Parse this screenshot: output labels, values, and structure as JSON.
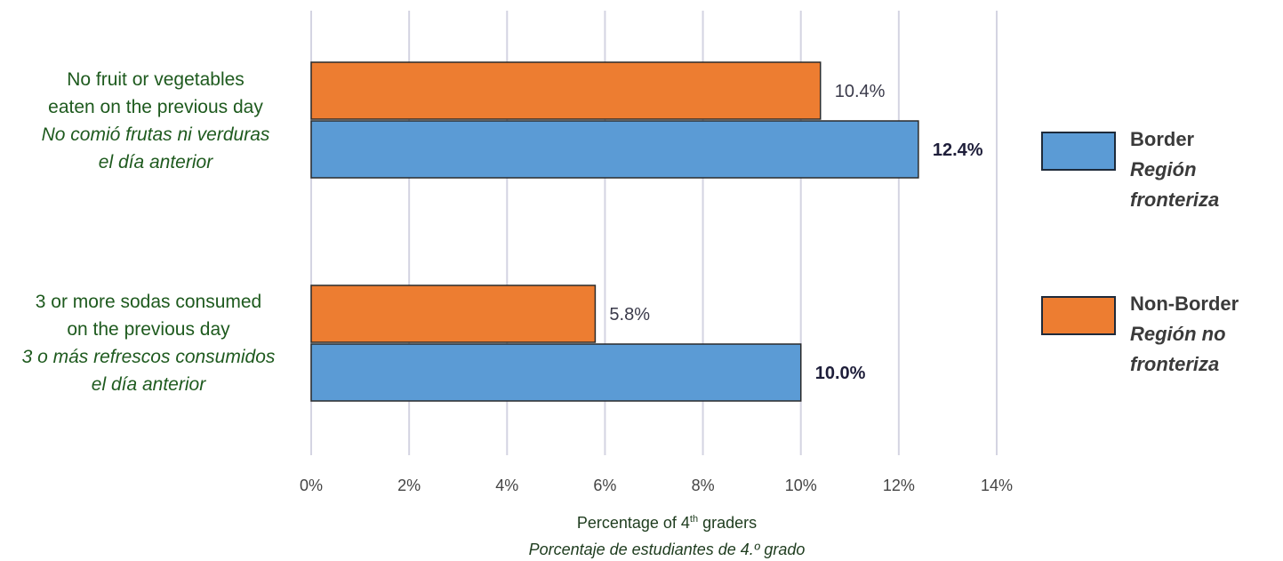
{
  "chart_data": {
    "type": "bar",
    "orientation": "horizontal",
    "categories": [
      {
        "en_line1": "No fruit or vegetables",
        "en_line2": "eaten on the previous day",
        "es_line1": "No comió frutas ni verduras",
        "es_line2": "el día anterior"
      },
      {
        "en_line1": "3 or more sodas consumed",
        "en_line2": "on the previous day",
        "es_line1": "3 o más refrescos consumidos",
        "es_line2": "el día anterior"
      }
    ],
    "series": [
      {
        "name": "Non-Border",
        "name_es_line1": "Región no",
        "name_es_line2": "fronteriza",
        "color": "#ed7d31",
        "values": [
          10.4,
          5.8
        ],
        "labels": [
          "10.4%",
          "5.8%"
        ]
      },
      {
        "name": "Border",
        "name_es_line1": "Región",
        "name_es_line2": "fronteriza",
        "color": "#5b9bd5",
        "values": [
          12.4,
          10.0
        ],
        "labels": [
          "12.4%",
          "10.0%"
        ]
      }
    ],
    "xlim": [
      0,
      14
    ],
    "xticks": [
      "0%",
      "2%",
      "4%",
      "6%",
      "8%",
      "10%",
      "12%",
      "14%"
    ],
    "xlabel_en_prefix": "Percentage of 4",
    "xlabel_en_sup": "th",
    "xlabel_en_suffix": " graders",
    "xlabel_es": "Porcentaje de estudiantes de 4.º grado",
    "grid": true,
    "legend_placement": "right"
  }
}
